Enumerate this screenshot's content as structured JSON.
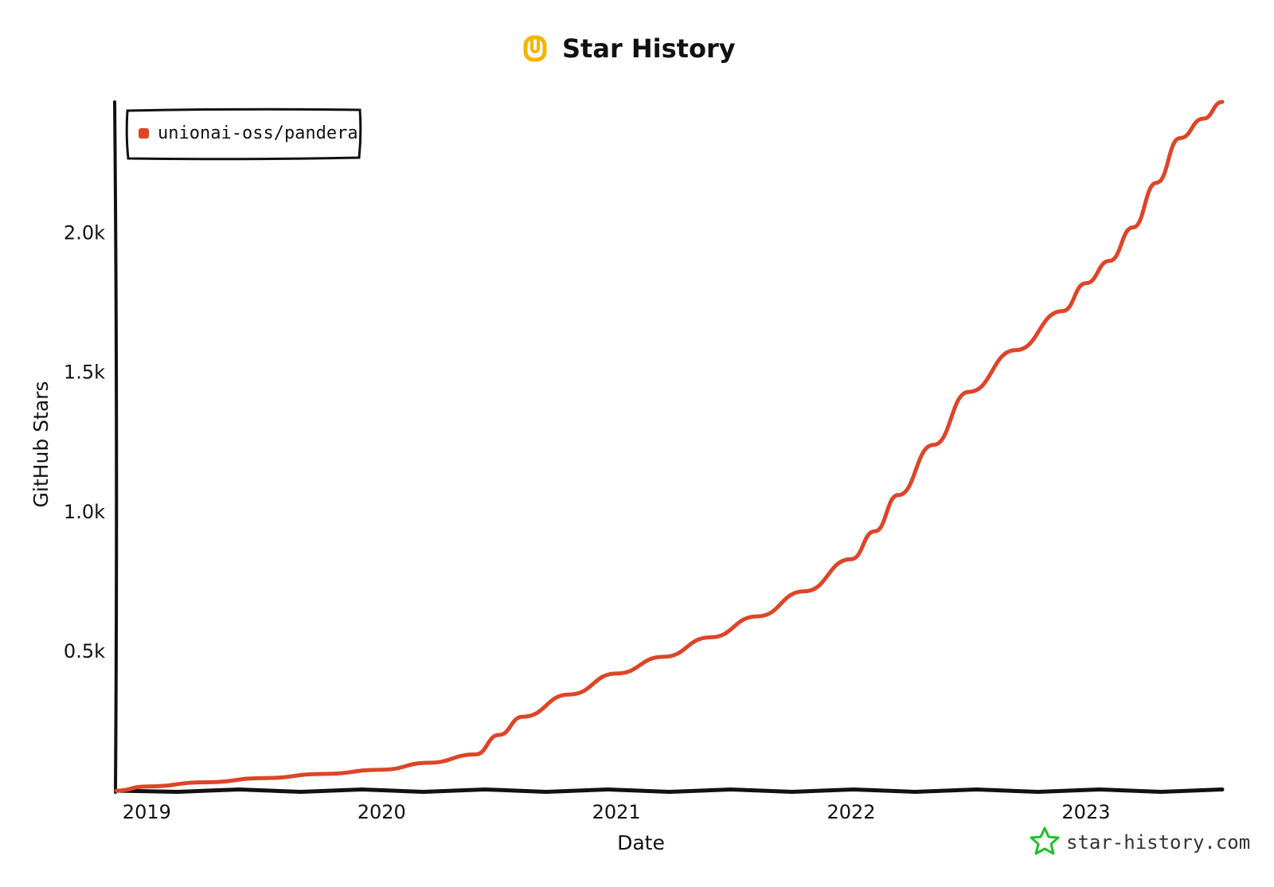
{
  "chart_data": {
    "type": "line",
    "title": "Star History",
    "xlabel": "Date",
    "ylabel": "GitHub Stars",
    "x_ticks": [
      "2019",
      "2020",
      "2021",
      "2022",
      "2023"
    ],
    "y_ticks": [
      "0.5k",
      "1.0k",
      "1.5k",
      "2.0k"
    ],
    "y_tick_values": [
      500,
      1000,
      1500,
      2000
    ],
    "xlim": [
      2018.87,
      2023.58
    ],
    "ylim": [
      0,
      2470
    ],
    "legend_position": "top-left",
    "grid": false,
    "series": [
      {
        "name": "unionai-oss/pandera",
        "color": "#dd4528",
        "x": [
          2018.87,
          2019.0,
          2019.25,
          2019.5,
          2019.75,
          2020.0,
          2020.2,
          2020.4,
          2020.5,
          2020.6,
          2020.8,
          2021.0,
          2021.2,
          2021.4,
          2021.6,
          2021.8,
          2022.0,
          2022.1,
          2022.2,
          2022.35,
          2022.5,
          2022.7,
          2022.9,
          2023.0,
          2023.1,
          2023.2,
          2023.3,
          2023.4,
          2023.5,
          2023.58
        ],
        "y": [
          0,
          15,
          30,
          45,
          60,
          75,
          100,
          130,
          200,
          265,
          345,
          420,
          480,
          550,
          625,
          715,
          830,
          930,
          1060,
          1240,
          1430,
          1580,
          1720,
          1820,
          1900,
          2020,
          2180,
          2340,
          2410,
          2470
        ]
      }
    ]
  },
  "watermark": {
    "text": "star-history.com",
    "color": "#22c02b"
  },
  "logo": {
    "name": "star-history-logo-icon",
    "color": "#f5b400"
  }
}
